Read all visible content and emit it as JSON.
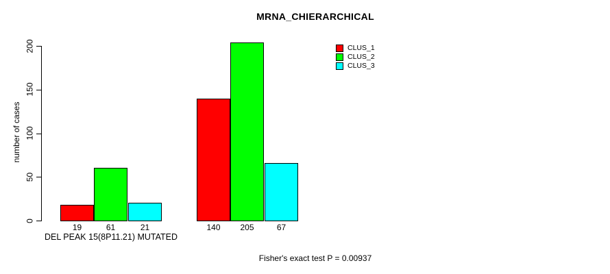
{
  "chart_data": {
    "type": "bar",
    "title": "MRNA_CHIERARCHICAL",
    "ylabel": "number of cases",
    "xlabel": "",
    "yticks": [
      0,
      50,
      100,
      150,
      200
    ],
    "ylim": [
      0,
      205
    ],
    "grid": false,
    "legend_position": "top-right",
    "categories": [
      "DEL PEAK 15(8P11.21) MUTATED",
      ""
    ],
    "group_axis_label": "DEL PEAK 15(8P11.21) MUTATED",
    "series": [
      {
        "name": "CLUS_1",
        "color": "#FF0000",
        "values": [
          19,
          140
        ]
      },
      {
        "name": "CLUS_2",
        "color": "#00FF00",
        "values": [
          61,
          205
        ]
      },
      {
        "name": "CLUS_3",
        "color": "#00FFFF",
        "values": [
          21,
          67
        ]
      }
    ],
    "bar_value_labels_shown": true,
    "footnote": "Fisher's exact test P = 0.00937",
    "axis_color": "#000000",
    "text_color": "#000000",
    "background_color": "#FFFFFF"
  }
}
